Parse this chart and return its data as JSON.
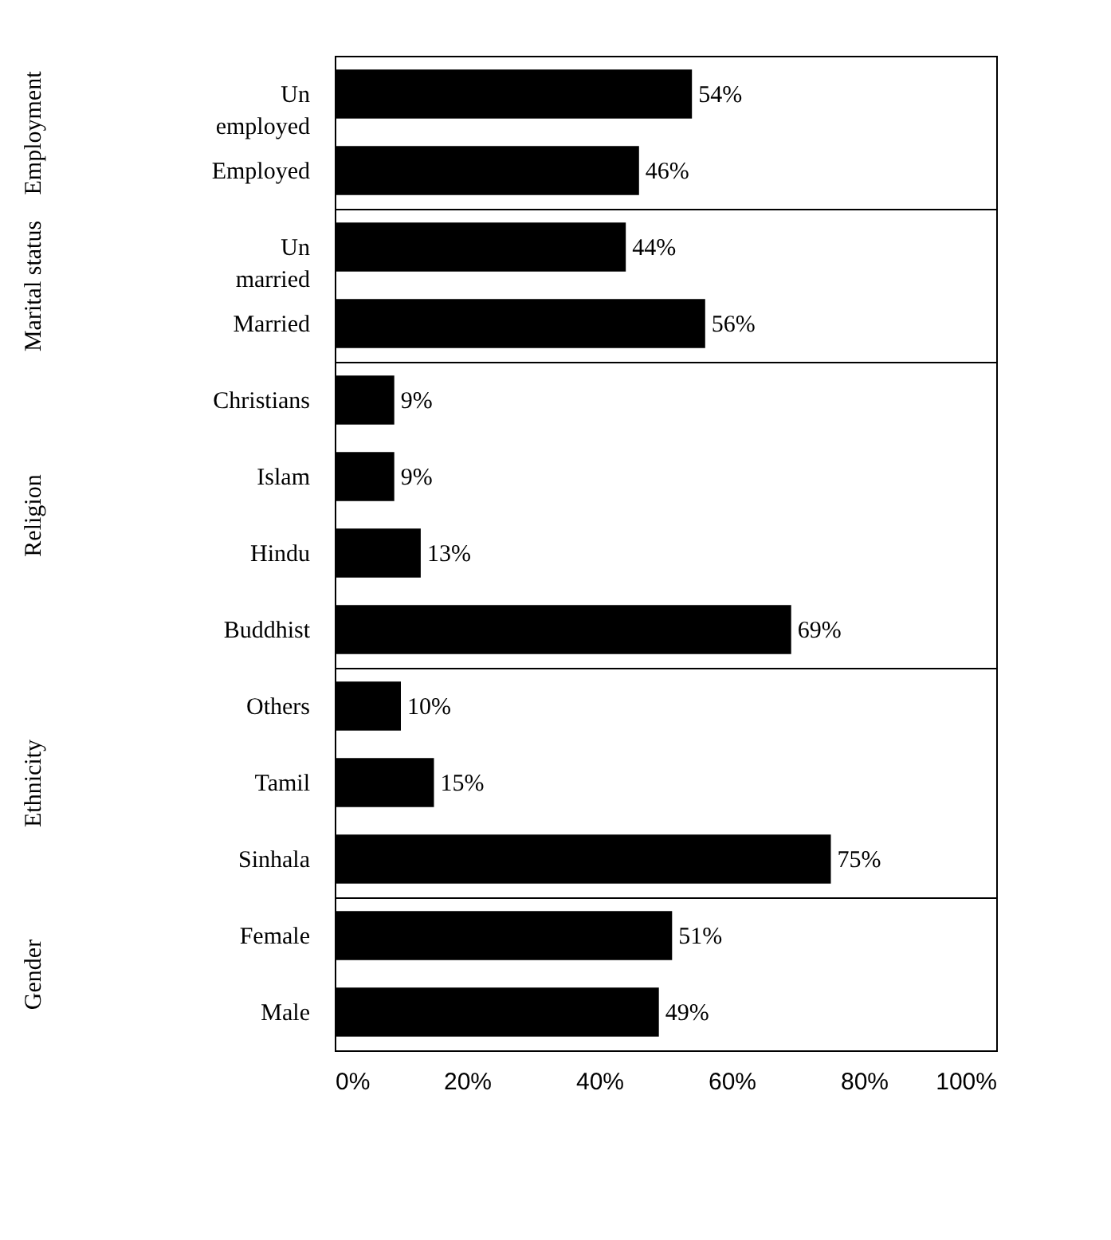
{
  "chart_data": [
    {
      "type": "bar",
      "orientation": "horizontal",
      "ylabel": "Employment",
      "categories": [
        "Un employed",
        "Employed"
      ],
      "values": [
        54,
        46
      ],
      "value_labels": [
        "54%",
        "46%"
      ],
      "color": "#000000",
      "xlim": [
        0,
        100
      ],
      "tick_labels": "y"
    },
    {
      "type": "bar",
      "orientation": "horizontal",
      "ylabel": "Marital status",
      "categories": [
        "Un married",
        "Married"
      ],
      "values": [
        44,
        56
      ],
      "value_labels": [
        "44%",
        "56%"
      ],
      "color": "#000000",
      "xlim": [
        0,
        100
      ],
      "tick_labels": "y"
    },
    {
      "type": "bar",
      "orientation": "horizontal",
      "ylabel": "Religion",
      "categories": [
        "Christians",
        "Islam",
        "Hindu",
        "Buddhist"
      ],
      "values": [
        9,
        9,
        13,
        69
      ],
      "value_labels": [
        "9%",
        "9%",
        "13%",
        "69%"
      ],
      "color": "#000000",
      "xlim": [
        0,
        100
      ],
      "tick_labels": "y"
    },
    {
      "type": "bar",
      "orientation": "horizontal",
      "ylabel": "Ethnicity",
      "categories": [
        "Others",
        "Tamil",
        "Sinhala"
      ],
      "values": [
        10,
        15,
        75
      ],
      "value_labels": [
        "10%",
        "15%",
        "75%"
      ],
      "color": "#000000",
      "xlim": [
        0,
        100
      ],
      "tick_labels": "y"
    },
    {
      "type": "bar",
      "orientation": "horizontal",
      "ylabel": "Gender",
      "categories": [
        "Female",
        "Male"
      ],
      "values": [
        51,
        49
      ],
      "value_labels": [
        "51%",
        "49%"
      ],
      "color": "#000000",
      "xlim": [
        0,
        100
      ],
      "xticks": [
        {
          "value": 0,
          "label": "0%"
        },
        {
          "value": 20,
          "label": "20%"
        },
        {
          "value": 40,
          "label": "40%"
        },
        {
          "value": 60,
          "label": "60%"
        },
        {
          "value": 80,
          "label": "80%"
        },
        {
          "value": 100,
          "label": "100%"
        }
      ]
    }
  ]
}
